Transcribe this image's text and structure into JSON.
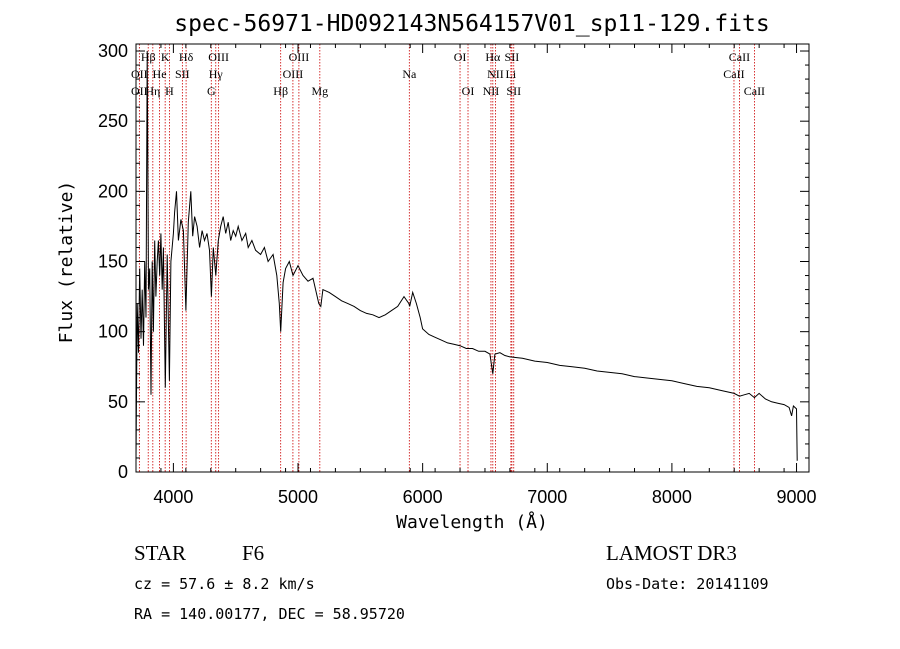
{
  "chart_data": {
    "type": "line",
    "title": "spec-56971-HD092143N564157V01_sp11-129.fits",
    "xlabel": "Wavelength (Å)",
    "ylabel": "Flux (relative)",
    "xlim": [
      3700,
      9100
    ],
    "ylim": [
      0,
      305
    ],
    "x_ticks": [
      4000,
      5000,
      6000,
      7000,
      8000,
      9000
    ],
    "x_tick_labels": [
      "4000",
      "5000",
      "6000",
      "7000",
      "8000",
      "9000"
    ],
    "y_ticks": [
      0,
      50,
      100,
      150,
      200,
      250,
      300
    ],
    "y_tick_labels": [
      "0",
      "50",
      "100",
      "150",
      "200",
      "250",
      "300"
    ],
    "series": [
      {
        "name": "flux",
        "color": "#000000",
        "points": [
          [
            3700,
            8
          ],
          [
            3710,
            120
          ],
          [
            3720,
            85
          ],
          [
            3730,
            145
          ],
          [
            3740,
            95
          ],
          [
            3750,
            130
          ],
          [
            3760,
            90
          ],
          [
            3770,
            150
          ],
          [
            3780,
            110
          ],
          [
            3790,
            300
          ],
          [
            3800,
            130
          ],
          [
            3810,
            145
          ],
          [
            3820,
            55
          ],
          [
            3830,
            150
          ],
          [
            3840,
            100
          ],
          [
            3850,
            165
          ],
          [
            3860,
            125
          ],
          [
            3870,
            150
          ],
          [
            3880,
            165
          ],
          [
            3890,
            140
          ],
          [
            3900,
            170
          ],
          [
            3910,
            130
          ],
          [
            3920,
            160
          ],
          [
            3935,
            60
          ],
          [
            3950,
            155
          ],
          [
            3968,
            65
          ],
          [
            3980,
            150
          ],
          [
            4000,
            170
          ],
          [
            4010,
            185
          ],
          [
            4025,
            200
          ],
          [
            4040,
            165
          ],
          [
            4060,
            180
          ],
          [
            4080,
            172
          ],
          [
            4100,
            115
          ],
          [
            4120,
            178
          ],
          [
            4140,
            200
          ],
          [
            4155,
            168
          ],
          [
            4170,
            182
          ],
          [
            4190,
            175
          ],
          [
            4210,
            160
          ],
          [
            4230,
            172
          ],
          [
            4250,
            165
          ],
          [
            4270,
            170
          ],
          [
            4290,
            158
          ],
          [
            4305,
            125
          ],
          [
            4320,
            160
          ],
          [
            4340,
            140
          ],
          [
            4360,
            165
          ],
          [
            4380,
            175
          ],
          [
            4400,
            182
          ],
          [
            4420,
            170
          ],
          [
            4440,
            178
          ],
          [
            4460,
            165
          ],
          [
            4480,
            172
          ],
          [
            4500,
            168
          ],
          [
            4520,
            175
          ],
          [
            4550,
            165
          ],
          [
            4580,
            170
          ],
          [
            4600,
            160
          ],
          [
            4630,
            165
          ],
          [
            4660,
            158
          ],
          [
            4700,
            155
          ],
          [
            4730,
            160
          ],
          [
            4760,
            150
          ],
          [
            4800,
            155
          ],
          [
            4830,
            140
          ],
          [
            4850,
            120
          ],
          [
            4861,
            100
          ],
          [
            4880,
            135
          ],
          [
            4900,
            145
          ],
          [
            4930,
            150
          ],
          [
            4960,
            140
          ],
          [
            5000,
            147
          ],
          [
            5040,
            140
          ],
          [
            5080,
            136
          ],
          [
            5120,
            138
          ],
          [
            5167,
            120
          ],
          [
            5183,
            118
          ],
          [
            5200,
            130
          ],
          [
            5250,
            128
          ],
          [
            5300,
            125
          ],
          [
            5350,
            122
          ],
          [
            5400,
            120
          ],
          [
            5450,
            118
          ],
          [
            5500,
            115
          ],
          [
            5550,
            113
          ],
          [
            5600,
            112
          ],
          [
            5650,
            110
          ],
          [
            5700,
            112
          ],
          [
            5750,
            115
          ],
          [
            5800,
            118
          ],
          [
            5850,
            125
          ],
          [
            5890,
            120
          ],
          [
            5896,
            118
          ],
          [
            5920,
            128
          ],
          [
            5950,
            120
          ],
          [
            5980,
            110
          ],
          [
            6000,
            102
          ],
          [
            6050,
            98
          ],
          [
            6100,
            96
          ],
          [
            6150,
            94
          ],
          [
            6200,
            92
          ],
          [
            6250,
            91
          ],
          [
            6300,
            90
          ],
          [
            6350,
            88
          ],
          [
            6400,
            88
          ],
          [
            6450,
            86
          ],
          [
            6500,
            86
          ],
          [
            6540,
            84
          ],
          [
            6563,
            70
          ],
          [
            6580,
            84
          ],
          [
            6620,
            85
          ],
          [
            6660,
            83
          ],
          [
            6700,
            82
          ],
          [
            6800,
            81
          ],
          [
            6900,
            79
          ],
          [
            7000,
            78
          ],
          [
            7100,
            76
          ],
          [
            7200,
            75
          ],
          [
            7300,
            74
          ],
          [
            7400,
            72
          ],
          [
            7500,
            71
          ],
          [
            7600,
            70
          ],
          [
            7700,
            68
          ],
          [
            7800,
            67
          ],
          [
            7900,
            66
          ],
          [
            8000,
            65
          ],
          [
            8100,
            63
          ],
          [
            8200,
            61
          ],
          [
            8300,
            60
          ],
          [
            8400,
            58
          ],
          [
            8500,
            56
          ],
          [
            8542,
            54
          ],
          [
            8580,
            55
          ],
          [
            8620,
            56
          ],
          [
            8662,
            53
          ],
          [
            8700,
            56
          ],
          [
            8750,
            52
          ],
          [
            8800,
            50
          ],
          [
            8850,
            49
          ],
          [
            8900,
            48
          ],
          [
            8940,
            46
          ],
          [
            8960,
            40
          ],
          [
            8975,
            47
          ],
          [
            9000,
            45
          ],
          [
            9005,
            8
          ]
        ]
      }
    ],
    "spectral_lines": [
      {
        "label": "Hβ",
        "x": 3798,
        "row": 1
      },
      {
        "label": "K",
        "x": 3934,
        "row": 1
      },
      {
        "label": "Hδ",
        "x": 4102,
        "row": 1
      },
      {
        "label": "OIII",
        "x": 4363,
        "row": 1
      },
      {
        "label": "OIII",
        "x": 5007,
        "row": 1
      },
      {
        "label": "OI",
        "x": 6300,
        "row": 1
      },
      {
        "label": "Hα",
        "x": 6563,
        "row": 1
      },
      {
        "label": "SII",
        "x": 6716,
        "row": 1
      },
      {
        "label": "CaII",
        "x": 8542,
        "row": 1
      },
      {
        "label": "OII",
        "x": 3727,
        "row": 2
      },
      {
        "label": "He",
        "x": 3889,
        "row": 2
      },
      {
        "label": "SII",
        "x": 4072,
        "row": 2
      },
      {
        "label": "Hγ",
        "x": 4340,
        "row": 2
      },
      {
        "label": "OIII",
        "x": 4959,
        "row": 2
      },
      {
        "label": "Na",
        "x": 5893,
        "row": 2
      },
      {
        "label": "NII",
        "x": 6584,
        "row": 2
      },
      {
        "label": "Li",
        "x": 6708,
        "row": 2
      },
      {
        "label": "CaII",
        "x": 8498,
        "row": 2
      },
      {
        "label": "OII",
        "x": 3727,
        "row": 3
      },
      {
        "label": "Hη",
        "x": 3835,
        "row": 3
      },
      {
        "label": "H",
        "x": 3968,
        "row": 3
      },
      {
        "label": "G",
        "x": 4304,
        "row": 3
      },
      {
        "label": "Hβ",
        "x": 4861,
        "row": 3
      },
      {
        "label": "Mg",
        "x": 5175,
        "row": 3
      },
      {
        "label": "OI",
        "x": 6364,
        "row": 3
      },
      {
        "label": "NII",
        "x": 6548,
        "row": 3
      },
      {
        "label": "SII",
        "x": 6731,
        "row": 3
      },
      {
        "label": "CaII",
        "x": 8662,
        "row": 3
      }
    ],
    "marker_color": "#cc0000"
  },
  "info": {
    "object_class": "STAR",
    "subclass": "F6",
    "survey": "LAMOST DR3",
    "redshift": "cz = 57.6 ± 8.2 km/s",
    "obs_date": "Obs-Date: 20141109",
    "coords": "RA = 140.00177, DEC =  58.95720"
  }
}
